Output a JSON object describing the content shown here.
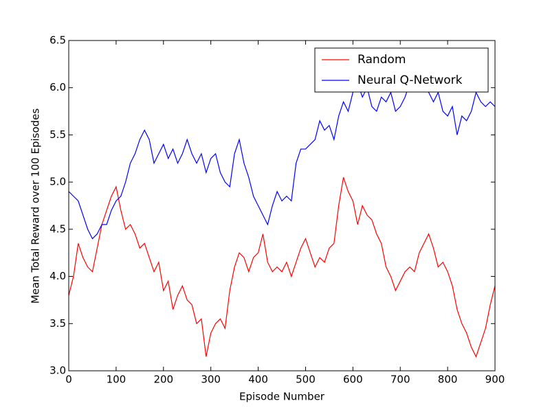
{
  "chart_data": {
    "type": "line",
    "xlabel": "Episode Number",
    "ylabel": "Mean Total Reward over 100 Episodes",
    "x": [
      0,
      10,
      20,
      30,
      40,
      50,
      60,
      70,
      80,
      90,
      100,
      110,
      120,
      130,
      140,
      150,
      160,
      170,
      180,
      190,
      200,
      210,
      220,
      230,
      240,
      250,
      260,
      270,
      280,
      290,
      300,
      310,
      320,
      330,
      340,
      350,
      360,
      370,
      380,
      390,
      400,
      410,
      420,
      430,
      440,
      450,
      460,
      470,
      480,
      490,
      500,
      510,
      520,
      530,
      540,
      550,
      560,
      570,
      580,
      590,
      600,
      610,
      620,
      630,
      640,
      650,
      660,
      670,
      680,
      690,
      700,
      710,
      720,
      730,
      740,
      750,
      760,
      770,
      780,
      790,
      800,
      810,
      820,
      830,
      840,
      850,
      860,
      870,
      880,
      890,
      900
    ],
    "series": [
      {
        "name": "Random",
        "color": "#ff0000",
        "values": [
          3.8,
          4.0,
          4.35,
          4.2,
          4.1,
          4.05,
          4.3,
          4.55,
          4.7,
          4.85,
          4.95,
          4.7,
          4.5,
          4.55,
          4.45,
          4.3,
          4.35,
          4.2,
          4.05,
          4.15,
          3.85,
          3.95,
          3.65,
          3.8,
          3.9,
          3.75,
          3.7,
          3.5,
          3.55,
          3.15,
          3.4,
          3.5,
          3.55,
          3.45,
          3.85,
          4.1,
          4.25,
          4.2,
          4.05,
          4.2,
          4.25,
          4.45,
          4.15,
          4.05,
          4.1,
          4.05,
          4.15,
          4.0,
          4.15,
          4.3,
          4.4,
          4.25,
          4.1,
          4.2,
          4.15,
          4.3,
          4.35,
          4.75,
          5.05,
          4.9,
          4.8,
          4.55,
          4.75,
          4.65,
          4.6,
          4.45,
          4.35,
          4.1,
          4.0,
          3.85,
          3.95,
          4.05,
          4.1,
          4.05,
          4.25,
          4.35,
          4.45,
          4.3,
          4.1,
          4.15,
          4.05,
          3.9,
          3.65,
          3.5,
          3.4,
          3.25,
          3.15,
          3.3,
          3.45,
          3.7,
          3.9
        ]
      },
      {
        "name": "Neural Q-Network",
        "color": "#0000ff",
        "values": [
          4.9,
          4.85,
          4.8,
          4.65,
          4.5,
          4.4,
          4.45,
          4.55,
          4.55,
          4.7,
          4.8,
          4.85,
          5.0,
          5.2,
          5.3,
          5.45,
          5.55,
          5.45,
          5.2,
          5.3,
          5.4,
          5.25,
          5.35,
          5.2,
          5.3,
          5.45,
          5.3,
          5.2,
          5.3,
          5.1,
          5.25,
          5.3,
          5.1,
          5.0,
          4.95,
          5.3,
          5.45,
          5.2,
          5.05,
          4.85,
          4.75,
          4.65,
          4.55,
          4.75,
          4.9,
          4.8,
          4.85,
          4.8,
          5.2,
          5.35,
          5.35,
          5.4,
          5.45,
          5.65,
          5.55,
          5.6,
          5.45,
          5.7,
          5.85,
          5.75,
          5.95,
          6.05,
          5.9,
          6.0,
          5.8,
          5.75,
          5.9,
          5.85,
          5.95,
          5.75,
          5.8,
          5.9,
          6.05,
          6.05,
          6.05,
          6.0,
          5.95,
          5.85,
          5.95,
          5.75,
          5.7,
          5.8,
          5.5,
          5.7,
          5.65,
          5.75,
          5.95,
          5.85,
          5.8,
          5.85,
          5.8
        ]
      }
    ],
    "xlim": [
      0,
      900
    ],
    "ylim": [
      3.0,
      6.5
    ],
    "xticks": [
      0,
      100,
      200,
      300,
      400,
      500,
      600,
      700,
      800,
      900
    ],
    "yticks": [
      {
        "value": 3,
        "label": "3.0"
      },
      3.5,
      {
        "value": 4,
        "label": "4.0"
      },
      4.5,
      {
        "value": 5,
        "label": "5.0"
      },
      5.5,
      {
        "value": 6,
        "label": "6.0"
      },
      6.5
    ],
    "legend": "upper right",
    "grid": false
  }
}
